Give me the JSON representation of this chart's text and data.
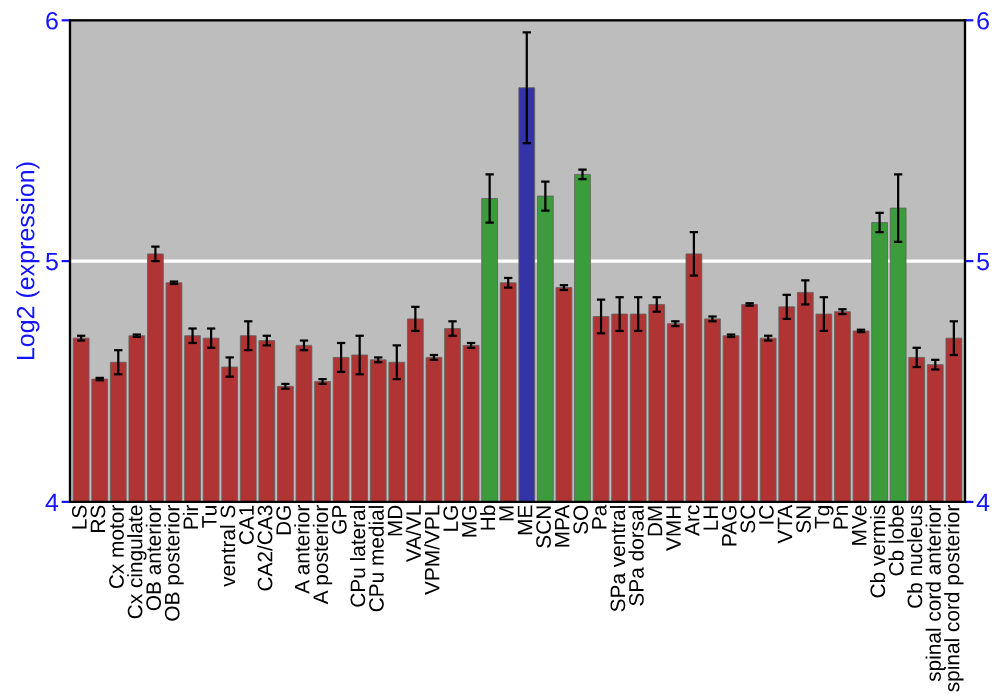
{
  "chart_data": {
    "type": "bar",
    "ylabel": "Log2 (expression)",
    "categories": [
      "LS",
      "RS",
      "Cx motor",
      "Cx cingulate",
      "OB anterior",
      "OB posterior",
      "Pir",
      "Tu",
      "ventral S",
      "CA1",
      "CA2/CA3",
      "DG",
      "A anterior",
      "A posterior",
      "GP",
      "CPu lateral",
      "CPu medial",
      "MD",
      "VA/VL",
      "VPM/VPL",
      "LG",
      "MG",
      "Hb",
      "M",
      "ME",
      "SCN",
      "MPA",
      "SO",
      "Pa",
      "SPa ventral",
      "SPa dorsal",
      "DM",
      "VMH",
      "Arc",
      "LH",
      "PAG",
      "SC",
      "IC",
      "VTA",
      "SN",
      "Tg",
      "Pn",
      "MVe",
      "Cb vermis",
      "Cb lobe",
      "Cb nucleus",
      "spinal cord anterior",
      "spinal cord posterior"
    ],
    "values": [
      4.68,
      4.51,
      4.58,
      4.69,
      5.03,
      4.91,
      4.69,
      4.68,
      4.56,
      4.69,
      4.67,
      4.48,
      4.65,
      4.5,
      4.6,
      4.61,
      4.59,
      4.58,
      4.76,
      4.6,
      4.72,
      4.65,
      5.26,
      4.91,
      5.72,
      5.27,
      4.89,
      5.36,
      4.77,
      4.78,
      4.78,
      4.82,
      4.74,
      5.03,
      4.76,
      4.69,
      4.82,
      4.68,
      4.81,
      4.87,
      4.78,
      4.79,
      4.71,
      5.16,
      5.22,
      4.6,
      4.57,
      4.68
    ],
    "errors": [
      0.01,
      0.005,
      0.05,
      0.005,
      0.03,
      0.005,
      0.03,
      0.04,
      0.04,
      0.06,
      0.02,
      0.01,
      0.02,
      0.01,
      0.06,
      0.08,
      0.01,
      0.07,
      0.05,
      0.01,
      0.03,
      0.01,
      0.1,
      0.02,
      0.23,
      0.06,
      0.01,
      0.02,
      0.07,
      0.07,
      0.07,
      0.03,
      0.01,
      0.09,
      0.01,
      0.005,
      0.005,
      0.01,
      0.05,
      0.05,
      0.07,
      0.01,
      0.005,
      0.04,
      0.14,
      0.04,
      0.02,
      0.07
    ],
    "colors": [
      "#b03434",
      "#b03434",
      "#b03434",
      "#b03434",
      "#b03434",
      "#b03434",
      "#b03434",
      "#b03434",
      "#b03434",
      "#b03434",
      "#b03434",
      "#b03434",
      "#b03434",
      "#b03434",
      "#b03434",
      "#b03434",
      "#b03434",
      "#b03434",
      "#b03434",
      "#b03434",
      "#b03434",
      "#b03434",
      "#3c9c3c",
      "#b03434",
      "#3434a8",
      "#3c9c3c",
      "#b03434",
      "#3c9c3c",
      "#b03434",
      "#b03434",
      "#b03434",
      "#b03434",
      "#b03434",
      "#b03434",
      "#b03434",
      "#b03434",
      "#b03434",
      "#b03434",
      "#b03434",
      "#b03434",
      "#b03434",
      "#b03434",
      "#b03434",
      "#3c9c3c",
      "#3c9c3c",
      "#b03434",
      "#b03434",
      "#b03434"
    ],
    "ylim": [
      4,
      6
    ],
    "yticks": [
      4,
      5,
      6
    ],
    "y2lim": [
      4,
      6
    ],
    "y2ticks": [
      4,
      5,
      6
    ],
    "grid": "y"
  }
}
